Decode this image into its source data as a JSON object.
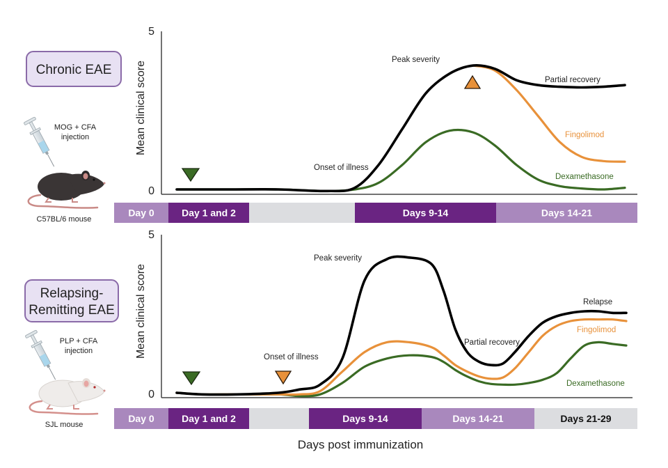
{
  "x_axis_label": "Days post immunization",
  "y_axis_label": "Mean clinical score",
  "colors": {
    "untreated": "#000000",
    "fingolimod": "#e8913a",
    "dexamethasone": "#3a6b24",
    "label_box_fill": "#e8e1f3",
    "label_box_stroke": "#8a6aa8",
    "phase_light": "#a988bd",
    "phase_dark": "#6a2482",
    "phase_gray": "#dcdde0"
  },
  "panels": [
    {
      "model_label": "Chronic EAE",
      "injection_label": [
        "MOG + CFA",
        "injection"
      ],
      "mouse_label": "C57BL/6 mouse",
      "mouse_color": "#3a3535",
      "y_ticks": [
        "0",
        "5"
      ],
      "ylim": [
        0,
        5
      ],
      "timeline": [
        {
          "label": "Day 0",
          "style": "light"
        },
        {
          "label": "Day 1 and 2",
          "style": "dark"
        },
        {
          "label": "",
          "style": "gray"
        },
        {
          "label": "Days 9-14",
          "style": "dark"
        },
        {
          "label": "Days 14-21",
          "style": "light"
        }
      ],
      "annotations": [
        {
          "text": "Onset of illness",
          "color": "untreated"
        },
        {
          "text": "Peak severity",
          "color": "untreated"
        },
        {
          "text": "Partial recovery",
          "color": "untreated"
        },
        {
          "text": "Fingolimod",
          "color": "fingolimod"
        },
        {
          "text": "Dexamethasone",
          "color": "dexamethasone"
        }
      ],
      "markers": [
        {
          "series": "dexamethasone",
          "shape": "triangle-down",
          "meaning": "treatment start"
        },
        {
          "series": "fingolimod",
          "shape": "triangle-up",
          "meaning": "treatment start"
        }
      ]
    },
    {
      "model_label": [
        "Relapsing-",
        "Remitting EAE"
      ],
      "injection_label": [
        "PLP + CFA",
        "injection"
      ],
      "mouse_label": "SJL mouse",
      "mouse_color": "#efecea",
      "y_ticks": [
        "0",
        "5"
      ],
      "ylim": [
        0,
        5
      ],
      "timeline": [
        {
          "label": "Day 0",
          "style": "light"
        },
        {
          "label": "Day 1 and 2",
          "style": "dark"
        },
        {
          "label": "",
          "style": "gray"
        },
        {
          "label": "Days 9-14",
          "style": "dark"
        },
        {
          "label": "Days 14-21",
          "style": "light"
        },
        {
          "label": "Days 21-29",
          "style": "gray"
        }
      ],
      "annotations": [
        {
          "text": "Onset of illness",
          "color": "untreated"
        },
        {
          "text": "Peak severity",
          "color": "untreated"
        },
        {
          "text": "Partial recovery",
          "color": "untreated"
        },
        {
          "text": "Relapse",
          "color": "untreated"
        },
        {
          "text": "Fingolimod",
          "color": "fingolimod"
        },
        {
          "text": "Dexamethasone",
          "color": "dexamethasone"
        }
      ],
      "markers": [
        {
          "series": "dexamethasone",
          "shape": "triangle-down",
          "meaning": "treatment start"
        },
        {
          "series": "fingolimod",
          "shape": "triangle-down",
          "meaning": "treatment start"
        }
      ]
    }
  ],
  "chart_data": [
    {
      "type": "line",
      "title": "Chronic EAE",
      "xlabel": "Days post immunization",
      "ylabel": "Mean clinical score",
      "ylim": [
        0,
        5
      ],
      "x": [
        0,
        2,
        4,
        6,
        8,
        9,
        10,
        11,
        12,
        13,
        14,
        15,
        16,
        17,
        18,
        19,
        20,
        21
      ],
      "series": [
        {
          "name": "Untreated",
          "values": [
            0.15,
            0.15,
            0.15,
            0.15,
            0.1,
            0.2,
            0.9,
            2.0,
            3.1,
            3.7,
            3.95,
            3.85,
            3.5,
            3.35,
            3.3,
            3.28,
            3.3,
            3.35
          ]
        },
        {
          "name": "Fingolimod",
          "values": [
            null,
            null,
            null,
            null,
            null,
            null,
            null,
            null,
            null,
            null,
            3.95,
            3.8,
            3.2,
            2.4,
            1.6,
            1.15,
            1.02,
            1.0
          ]
        },
        {
          "name": "Dexamethasone",
          "values": [
            0.15,
            0.15,
            0.15,
            0.15,
            0.1,
            0.15,
            0.35,
            0.9,
            1.6,
            1.95,
            1.9,
            1.5,
            0.9,
            0.45,
            0.25,
            0.18,
            0.15,
            0.2
          ]
        }
      ]
    },
    {
      "type": "line",
      "title": "Relapsing-Remitting EAE",
      "xlabel": "Days post immunization",
      "ylabel": "Mean clinical score",
      "ylim": [
        0,
        5
      ],
      "x": [
        0,
        2,
        4,
        6,
        8,
        9,
        10,
        11,
        12,
        13,
        14,
        15,
        16,
        17,
        18,
        19,
        20,
        21,
        22,
        23,
        24,
        25,
        26,
        27,
        28,
        29
      ],
      "series": [
        {
          "name": "Untreated",
          "values": [
            0.15,
            0.1,
            0.1,
            0.15,
            0.25,
            0.4,
            1.2,
            3.6,
            4.25,
            4.3,
            4.1,
            3.3,
            2.1,
            1.4,
            1.1,
            1.0,
            1.05,
            1.4,
            1.9,
            2.3,
            2.5,
            2.6,
            2.65,
            2.65,
            2.6,
            2.6
          ]
        },
        {
          "name": "Fingolimod",
          "values": [
            0.15,
            0.1,
            0.1,
            0.1,
            0.1,
            0.2,
            0.8,
            1.4,
            1.7,
            1.7,
            1.55,
            1.3,
            1.0,
            0.8,
            0.65,
            0.58,
            0.62,
            0.9,
            1.4,
            1.9,
            2.2,
            2.35,
            2.4,
            2.4,
            2.4,
            2.35
          ]
        },
        {
          "name": "Dexamethasone",
          "values": [
            0.15,
            0.1,
            0.1,
            0.1,
            0.05,
            0.1,
            0.45,
            0.95,
            1.2,
            1.3,
            1.25,
            1.1,
            0.85,
            0.65,
            0.5,
            0.42,
            0.4,
            0.4,
            0.45,
            0.55,
            0.75,
            1.2,
            1.6,
            1.7,
            1.65,
            1.6
          ]
        }
      ]
    }
  ]
}
